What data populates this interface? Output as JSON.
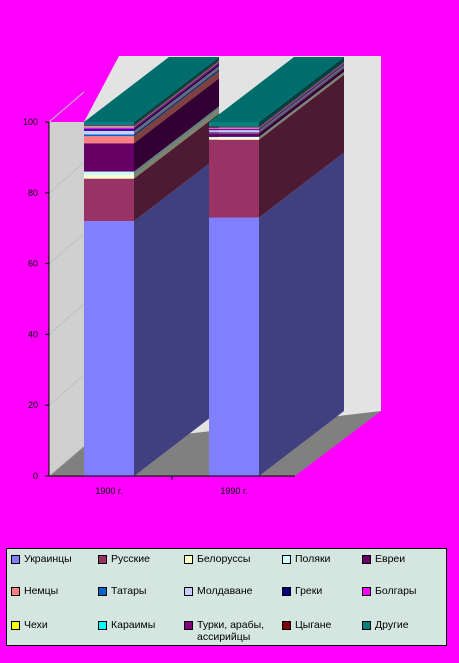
{
  "chart_data": {
    "type": "bar",
    "stacked": true,
    "three_d": true,
    "categories": [
      "1900 г.",
      "1990 г."
    ],
    "y_ticks": [
      "0",
      "20",
      "40",
      "60",
      "80",
      "100"
    ],
    "ylim": [
      0,
      100
    ],
    "series": [
      {
        "name": "Украинцы",
        "color": "#8080ff",
        "values": [
          72.0,
          73.0
        ]
      },
      {
        "name": "Русские",
        "color": "#993366",
        "values": [
          12.0,
          22.0
        ]
      },
      {
        "name": "Белоруссы",
        "color": "#ffffcc",
        "values": [
          1.0,
          0.5
        ]
      },
      {
        "name": "Поляки",
        "color": "#ccffff",
        "values": [
          1.0,
          0.3
        ]
      },
      {
        "name": "Евреи",
        "color": "#660066",
        "values": [
          8.0,
          1.0
        ]
      },
      {
        "name": "Немцы",
        "color": "#ff8080",
        "values": [
          2.0,
          0.2
        ]
      },
      {
        "name": "Татары",
        "color": "#0066cc",
        "values": [
          0.5,
          0.2
        ]
      },
      {
        "name": "Молдаване",
        "color": "#ccccff",
        "values": [
          1.0,
          0.5
        ]
      },
      {
        "name": "Греки",
        "color": "#000080",
        "values": [
          0.5,
          0.2
        ]
      },
      {
        "name": "Болгары",
        "color": "#ff00ff",
        "values": [
          0.5,
          0.3
        ]
      },
      {
        "name": "Чехи",
        "color": "#ffff00",
        "values": [
          0.2,
          0.1
        ]
      },
      {
        "name": "Караимы",
        "color": "#00ffff",
        "values": [
          0.1,
          0.1
        ]
      },
      {
        "name": "Турки, арабы, ассирийцы",
        "color": "#800080",
        "values": [
          0.2,
          0.1
        ]
      },
      {
        "name": "Цыгане",
        "color": "#800000",
        "values": [
          0.1,
          0.2
        ]
      },
      {
        "name": "Другие",
        "color": "#008080",
        "values": [
          0.9,
          1.3
        ]
      }
    ]
  }
}
